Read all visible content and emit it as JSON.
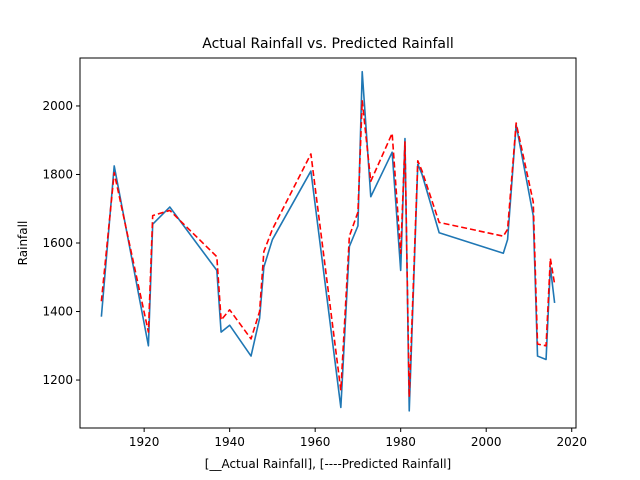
{
  "chart_data": {
    "type": "line",
    "title": "Actual Rainfall vs. Predicted Rainfall",
    "xlabel": "[__Actual Rainfall],  [----Predicted Rainfall]",
    "ylabel": "Rainfall",
    "xlim": [
      1905,
      2021
    ],
    "ylim": [
      1060,
      2140
    ],
    "xticks": [
      1920,
      1940,
      1960,
      1980,
      2000,
      2020
    ],
    "yticks": [
      1200,
      1400,
      1600,
      1800,
      2000
    ],
    "grid": false,
    "series": [
      {
        "color": "#1f77b4",
        "style": "solid",
        "points": [
          [
            1910,
            1385
          ],
          [
            1913,
            1825
          ],
          [
            1921,
            1300
          ],
          [
            1922,
            1655
          ],
          [
            1926,
            1705
          ],
          [
            1937,
            1520
          ],
          [
            1938,
            1340
          ],
          [
            1940,
            1360
          ],
          [
            1945,
            1270
          ],
          [
            1947,
            1380
          ],
          [
            1948,
            1530
          ],
          [
            1950,
            1610
          ],
          [
            1959,
            1810
          ],
          [
            1966,
            1120
          ],
          [
            1968,
            1590
          ],
          [
            1970,
            1650
          ],
          [
            1971,
            2100
          ],
          [
            1973,
            1735
          ],
          [
            1978,
            1865
          ],
          [
            1980,
            1520
          ],
          [
            1981,
            1905
          ],
          [
            1982,
            1110
          ],
          [
            1984,
            1830
          ],
          [
            1985,
            1800
          ],
          [
            1989,
            1630
          ],
          [
            2004,
            1570
          ],
          [
            2005,
            1610
          ],
          [
            2007,
            1945
          ],
          [
            2011,
            1680
          ],
          [
            2012,
            1270
          ],
          [
            2014,
            1260
          ],
          [
            2015,
            1530
          ],
          [
            2016,
            1425
          ]
        ]
      },
      {
        "color": "#ff0000",
        "style": "dashed",
        "points": [
          [
            1910,
            1430
          ],
          [
            1913,
            1805
          ],
          [
            1921,
            1340
          ],
          [
            1922,
            1680
          ],
          [
            1926,
            1695
          ],
          [
            1937,
            1560
          ],
          [
            1938,
            1375
          ],
          [
            1940,
            1405
          ],
          [
            1945,
            1320
          ],
          [
            1947,
            1400
          ],
          [
            1948,
            1575
          ],
          [
            1950,
            1640
          ],
          [
            1959,
            1860
          ],
          [
            1966,
            1170
          ],
          [
            1968,
            1620
          ],
          [
            1970,
            1690
          ],
          [
            1971,
            2015
          ],
          [
            1973,
            1780
          ],
          [
            1978,
            1920
          ],
          [
            1980,
            1570
          ],
          [
            1981,
            1895
          ],
          [
            1982,
            1150
          ],
          [
            1984,
            1840
          ],
          [
            1985,
            1810
          ],
          [
            1989,
            1660
          ],
          [
            2004,
            1620
          ],
          [
            2005,
            1640
          ],
          [
            2007,
            1950
          ],
          [
            2011,
            1720
          ],
          [
            2012,
            1305
          ],
          [
            2014,
            1300
          ],
          [
            2015,
            1555
          ],
          [
            2016,
            1480
          ]
        ]
      }
    ]
  }
}
